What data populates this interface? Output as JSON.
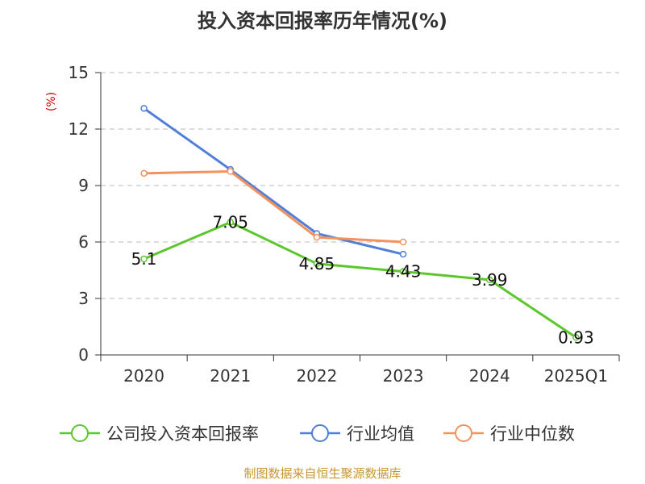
{
  "chart_data": {
    "type": "line",
    "title": "投入资本回报率历年情况(%)",
    "ylabel": "(%)",
    "xlabel": "",
    "categories": [
      "2020",
      "2021",
      "2022",
      "2023",
      "2024",
      "2025Q1"
    ],
    "ylim": [
      0,
      15
    ],
    "yticks": [
      0,
      3,
      6,
      9,
      12,
      15
    ],
    "grid": true,
    "legend_position": "bottom",
    "series": [
      {
        "name": "公司投入资本回报率",
        "color": "#5cc72c",
        "values": [
          5.1,
          7.05,
          4.85,
          4.43,
          3.99,
          0.93
        ],
        "labels": [
          "5.1",
          "7.05",
          "4.85",
          "4.43",
          "3.99",
          "0.93"
        ]
      },
      {
        "name": "行业均值",
        "color": "#4f7fd8",
        "values": [
          13.1,
          9.85,
          6.45,
          5.35,
          null,
          null
        ]
      },
      {
        "name": "行业中位数",
        "color": "#f4925e",
        "values": [
          9.65,
          9.75,
          6.25,
          6.0,
          null,
          null
        ]
      }
    ],
    "source": "制图数据来自恒生聚源数据库"
  }
}
